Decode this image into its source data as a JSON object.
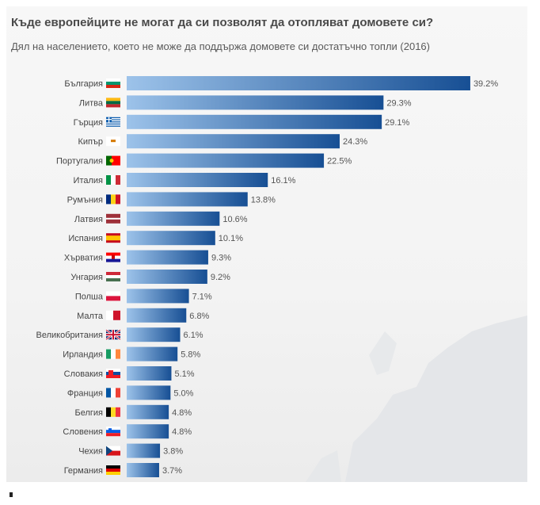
{
  "title": "Къде европейците не могат да си позволят да отопляват домовете си?",
  "subtitle": "Дял на населението, което не може да поддържа домовете си достатъчно топли (2016)",
  "colors": {
    "bar_dark": "#174f94",
    "bar_light": "#9dc3ea",
    "background": "#f4f4f4"
  },
  "chart_data": {
    "type": "bar",
    "orientation": "horizontal",
    "categories": [
      "България",
      "Литва",
      "Гърция",
      "Кипър",
      "Португалия",
      "Италия",
      "Румъния",
      "Латвия",
      "Испания",
      "Хърватия",
      "Унгария",
      "Полша",
      "Малта",
      "Великобритания",
      "Ирландия",
      "Словакия",
      "Франция",
      "Белгия",
      "Словения",
      "Чехия",
      "Германия"
    ],
    "values": [
      39.2,
      29.3,
      29.1,
      24.3,
      22.5,
      16.1,
      13.8,
      10.6,
      10.1,
      9.3,
      9.2,
      7.1,
      6.8,
      6.1,
      5.8,
      5.1,
      5.0,
      4.8,
      4.8,
      3.8,
      3.7
    ],
    "value_labels": [
      "39.2%",
      "29.3%",
      "29.1%",
      "24.3%",
      "22.5%",
      "16.1%",
      "13.8%",
      "10.6%",
      "10.1%",
      "9.3%",
      "9.2%",
      "7.1%",
      "6.8%",
      "6.1%",
      "5.8%",
      "5.1%",
      "5.0%",
      "4.8%",
      "4.8%",
      "3.8%",
      "3.7%"
    ],
    "flag_icons": [
      "bulgaria-flag-icon",
      "lithuania-flag-icon",
      "greece-flag-icon",
      "cyprus-flag-icon",
      "portugal-flag-icon",
      "italy-flag-icon",
      "romania-flag-icon",
      "latvia-flag-icon",
      "spain-flag-icon",
      "croatia-flag-icon",
      "hungary-flag-icon",
      "poland-flag-icon",
      "malta-flag-icon",
      "uk-flag-icon",
      "ireland-flag-icon",
      "slovakia-flag-icon",
      "france-flag-icon",
      "belgium-flag-icon",
      "slovenia-flag-icon",
      "czechia-flag-icon",
      "germany-flag-icon"
    ],
    "xlim": [
      0,
      40
    ],
    "grid": false,
    "legend": "none"
  }
}
